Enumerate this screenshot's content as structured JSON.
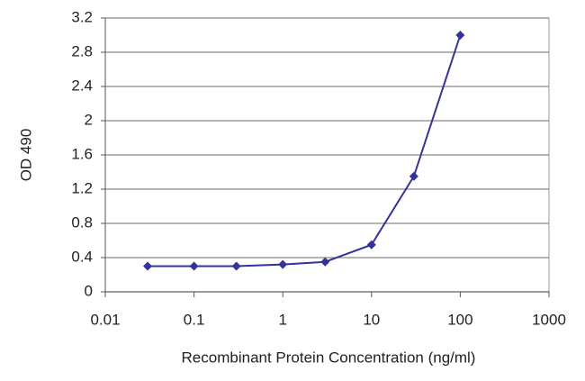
{
  "chart_data": {
    "type": "line",
    "x_label": "Recombinant Protein Concentration (ng/ml)",
    "y_label": "OD 490",
    "x": [
      0.03,
      0.1,
      0.3,
      1,
      3,
      10,
      30,
      100
    ],
    "values": [
      0.3,
      0.3,
      0.3,
      0.32,
      0.35,
      0.55,
      1.35,
      3.0
    ],
    "color": "#333399",
    "x_scale": "log",
    "xlim": [
      0.01,
      1000
    ],
    "xticks": [
      0.01,
      0.1,
      1,
      10,
      100,
      1000
    ],
    "ylim": [
      0,
      3.2
    ],
    "yticks": [
      0,
      0.4,
      0.8,
      1.2,
      1.6,
      2,
      2.4,
      2.8,
      3.2
    ],
    "grid": true
  }
}
